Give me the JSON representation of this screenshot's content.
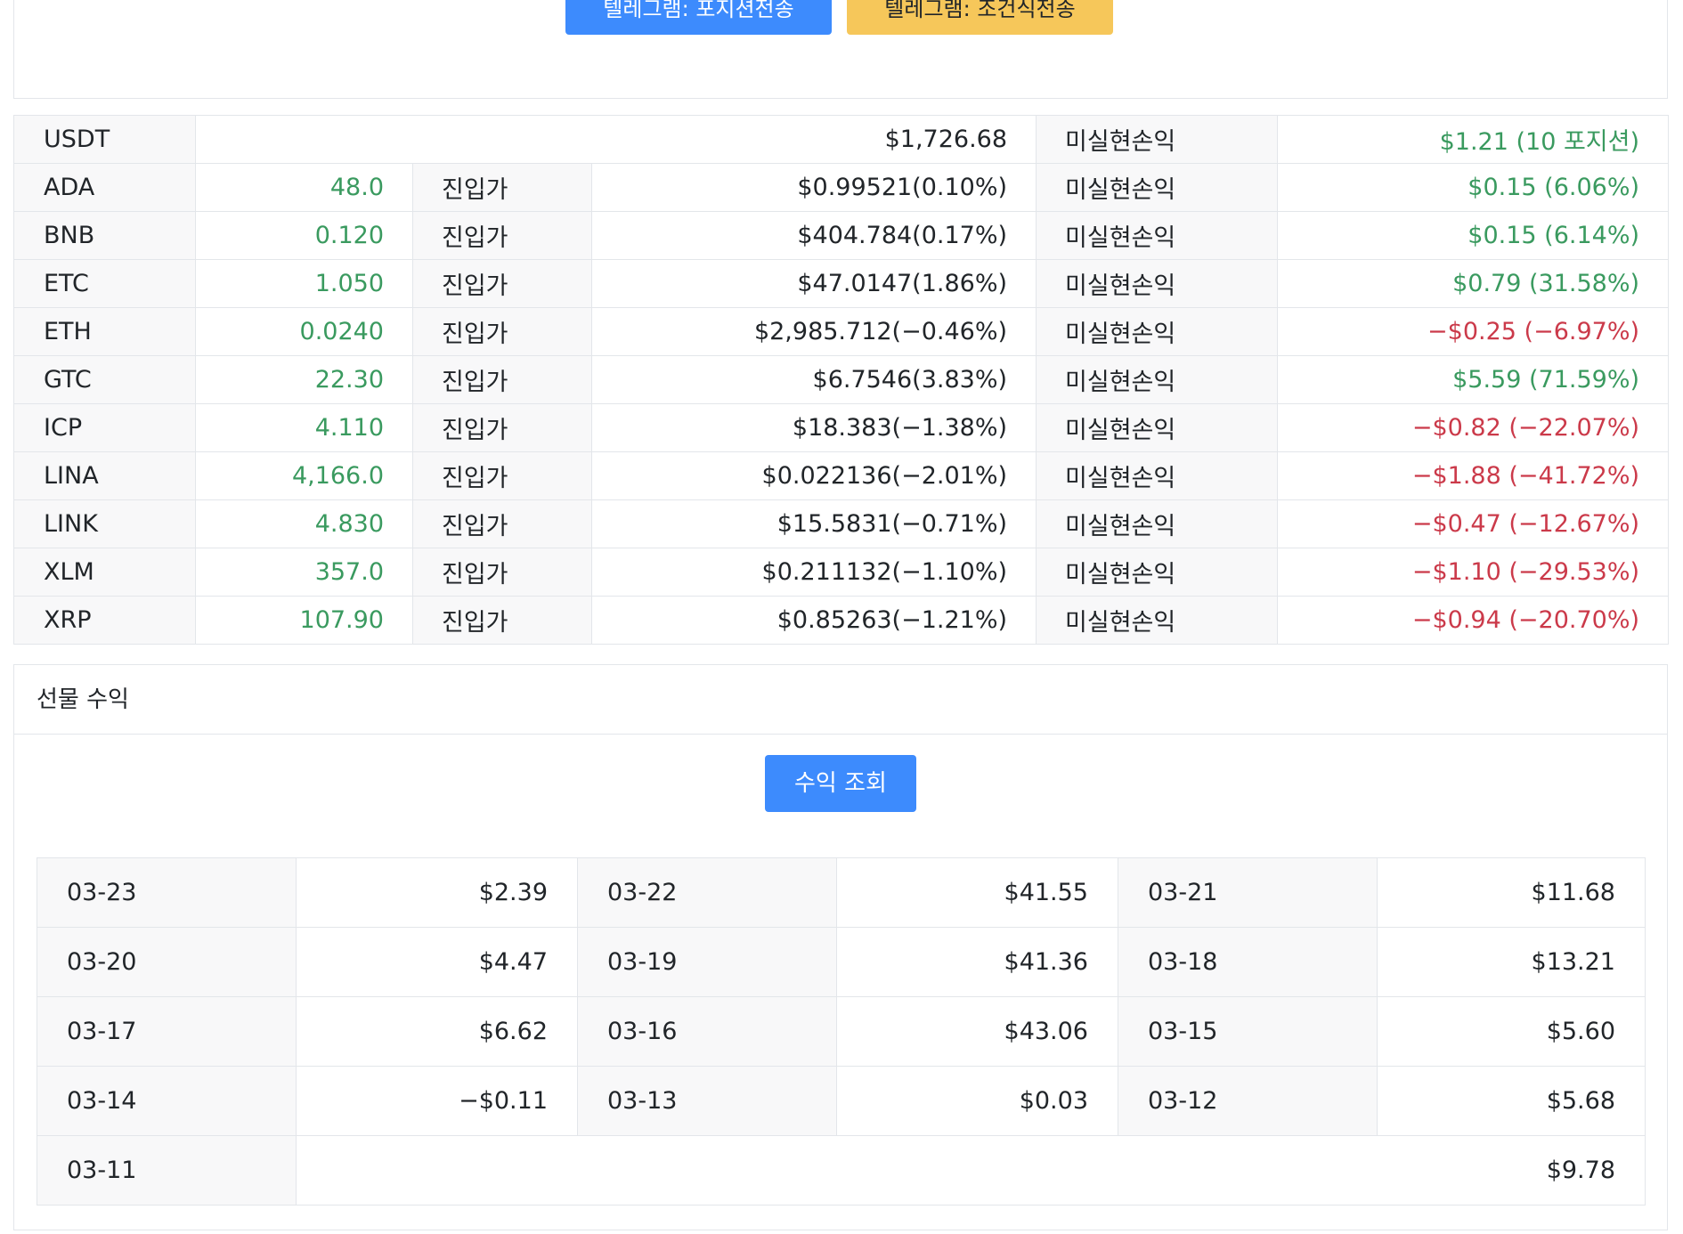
{
  "top_buttons": {
    "telegram_position": "텔레그램: 포지션전송",
    "telegram_condition": "텔레그램: 조건식전송"
  },
  "usdt": {
    "symbol": "USDT",
    "balance": "$1,726.68",
    "pnl_label": "미실현손익",
    "pnl": "$1.21 (10 포지션)"
  },
  "positions": [
    {
      "symbol": "ADA",
      "qty": "48.0",
      "entry_label": "진입가",
      "entry": "$0.99521(0.10%)",
      "pnl_label": "미실현손익",
      "pnl": "$0.15 (6.06%)",
      "pnl_color": "#3a9a5f"
    },
    {
      "symbol": "BNB",
      "qty": "0.120",
      "entry_label": "진입가",
      "entry": "$404.784(0.17%)",
      "pnl_label": "미실현손익",
      "pnl": "$0.15 (6.14%)",
      "pnl_color": "#3a9a5f"
    },
    {
      "symbol": "ETC",
      "qty": "1.050",
      "entry_label": "진입가",
      "entry": "$47.0147(1.86%)",
      "pnl_label": "미실현손익",
      "pnl": "$0.79 (31.58%)",
      "pnl_color": "#3a9a5f"
    },
    {
      "symbol": "ETH",
      "qty": "0.0240",
      "entry_label": "진입가",
      "entry": "$2,985.712(−0.46%)",
      "pnl_label": "미실현손익",
      "pnl": "−$0.25 (−6.97%)",
      "pnl_color": "#cb3a4a"
    },
    {
      "symbol": "GTC",
      "qty": "22.30",
      "entry_label": "진입가",
      "entry": "$6.7546(3.83%)",
      "pnl_label": "미실현손익",
      "pnl": "$5.59 (71.59%)",
      "pnl_color": "#3a9a5f"
    },
    {
      "symbol": "ICP",
      "qty": "4.110",
      "entry_label": "진입가",
      "entry": "$18.383(−1.38%)",
      "pnl_label": "미실현손익",
      "pnl": "−$0.82 (−22.07%)",
      "pnl_color": "#cb3a4a"
    },
    {
      "symbol": "LINA",
      "qty": "4,166.0",
      "entry_label": "진입가",
      "entry": "$0.022136(−2.01%)",
      "pnl_label": "미실현손익",
      "pnl": "−$1.88 (−41.72%)",
      "pnl_color": "#cb3a4a"
    },
    {
      "symbol": "LINK",
      "qty": "4.830",
      "entry_label": "진입가",
      "entry": "$15.5831(−0.71%)",
      "pnl_label": "미실현손익",
      "pnl": "−$0.47 (−12.67%)",
      "pnl_color": "#cb3a4a"
    },
    {
      "symbol": "XLM",
      "qty": "357.0",
      "entry_label": "진입가",
      "entry": "$0.211132(−1.10%)",
      "pnl_label": "미실현손익",
      "pnl": "−$1.10 (−29.53%)",
      "pnl_color": "#cb3a4a"
    },
    {
      "symbol": "XRP",
      "qty": "107.90",
      "entry_label": "진입가",
      "entry": "$0.85263(−1.21%)",
      "pnl_label": "미실현손익",
      "pnl": "−$0.94 (−20.70%)",
      "pnl_color": "#cb3a4a"
    }
  ],
  "earnings": {
    "header": "선물 수익",
    "query_button": "수익 조회",
    "rows": [
      [
        {
          "date": "03-23",
          "amount": "$2.39"
        },
        {
          "date": "03-22",
          "amount": "$41.55"
        },
        {
          "date": "03-21",
          "amount": "$11.68"
        }
      ],
      [
        {
          "date": "03-20",
          "amount": "$4.47"
        },
        {
          "date": "03-19",
          "amount": "$41.36"
        },
        {
          "date": "03-18",
          "amount": "$13.21"
        }
      ],
      [
        {
          "date": "03-17",
          "amount": "$6.62"
        },
        {
          "date": "03-16",
          "amount": "$43.06"
        },
        {
          "date": "03-15",
          "amount": "$5.60"
        }
      ],
      [
        {
          "date": "03-14",
          "amount": "−$0.11"
        },
        {
          "date": "03-13",
          "amount": "$0.03"
        },
        {
          "date": "03-12",
          "amount": "$5.68"
        }
      ],
      [
        {
          "date": "03-11",
          "amount": "$9.78"
        }
      ]
    ]
  }
}
